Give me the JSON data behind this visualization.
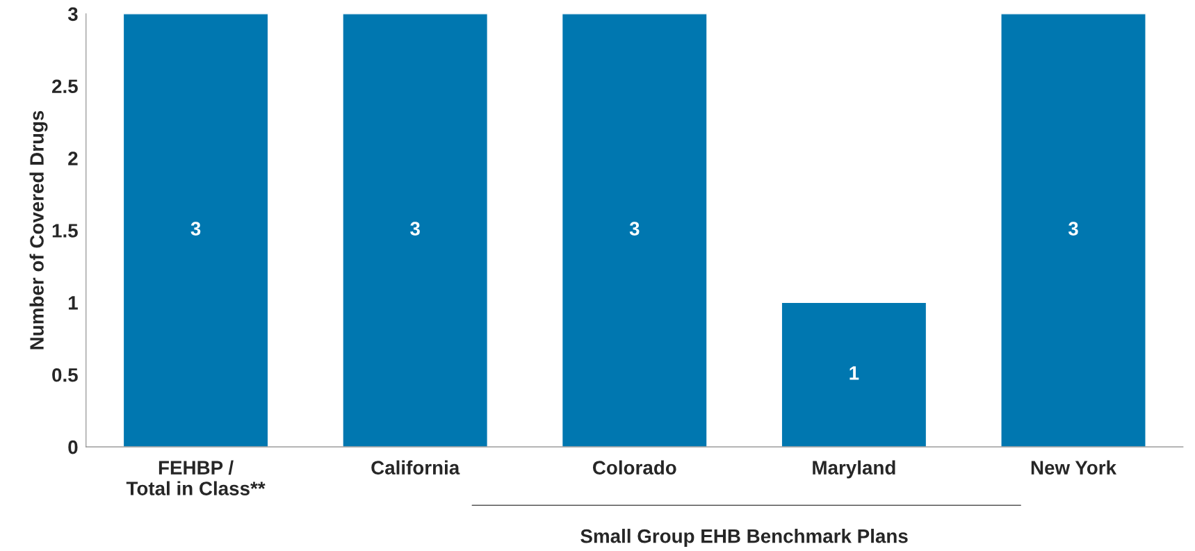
{
  "chart_data": {
    "type": "bar",
    "categories": [
      "FEHBP /\nTotal in Class**",
      "California",
      "Colorado",
      "Maryland",
      "New York"
    ],
    "values": [
      3,
      3,
      3,
      1,
      3
    ],
    "color": "#0077b0",
    "ylabel": "Number of Covered Drugs",
    "ylim": [
      0,
      3
    ],
    "yticks": [
      0,
      0.5,
      1,
      1.5,
      2,
      2.5,
      3
    ],
    "data_labels": true,
    "grid": false,
    "legend": false,
    "annotations": [
      "Small Group EHB Benchmark Plans"
    ]
  }
}
